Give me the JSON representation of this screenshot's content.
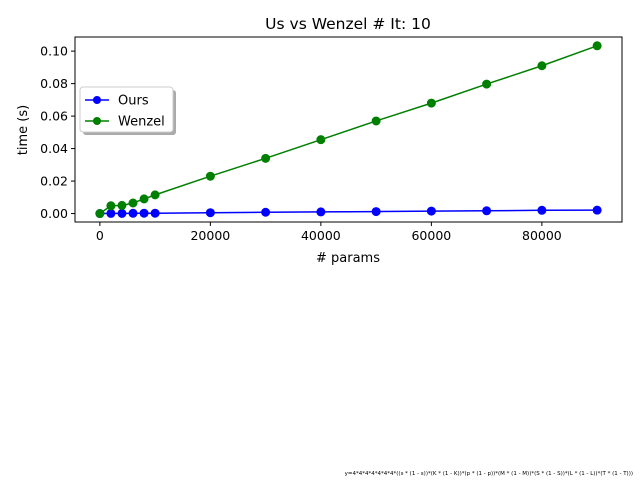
{
  "chart_data": {
    "type": "line",
    "title": "Us vs Wenzel # It: 10",
    "xlabel": "# params",
    "ylabel": "time (s)",
    "xlim": [
      -4500,
      94500
    ],
    "ylim": [
      -0.0052,
      0.1087
    ],
    "xticks": [
      0,
      20000,
      40000,
      60000,
      80000
    ],
    "xtick_labels": [
      "0",
      "20000",
      "40000",
      "60000",
      "80000"
    ],
    "yticks": [
      0.0,
      0.02,
      0.04,
      0.06,
      0.08,
      0.1
    ],
    "ytick_labels": [
      "0.00",
      "0.02",
      "0.04",
      "0.06",
      "0.08",
      "0.10"
    ],
    "grid": false,
    "legend_position": "upper-left",
    "x": [
      1,
      2000,
      4000,
      6000,
      8000,
      10000,
      20000,
      30000,
      40000,
      50000,
      60000,
      70000,
      80000,
      90000
    ],
    "series": [
      {
        "name": "Ours",
        "color": "#0000ff",
        "values": [
          0.0,
          0.0001,
          0.0001,
          0.00015,
          0.0002,
          0.0002,
          0.0005,
          0.0008,
          0.001,
          0.0012,
          0.0015,
          0.0017,
          0.002,
          0.0021
        ]
      },
      {
        "name": "Wenzel",
        "color": "#008000",
        "values": [
          0.0,
          0.0048,
          0.005,
          0.0065,
          0.009,
          0.0115,
          0.023,
          0.034,
          0.0455,
          0.057,
          0.068,
          0.0797,
          0.091,
          0.1033
        ]
      }
    ],
    "footnote": "y=4*4*4*4*4*4*4*((s * (1 - s))*(K * (1 - K))*(p * (1 - p))*(M * (1 - M))*(S * (1 - S))*(L * (1 - L))*(T * (1 - T)))"
  }
}
